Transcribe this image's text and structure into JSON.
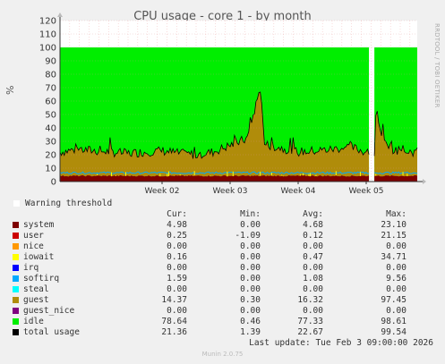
{
  "title": "CPU usage - core 1 - by month",
  "side_text": "RRDTOOL / TOBI OETIKER",
  "ylabel": "%",
  "warning_label": "Warning threshold",
  "columns": [
    "Cur:",
    "Min:",
    "Avg:",
    "Max:"
  ],
  "rows": [
    {
      "name": "system",
      "color": "#7e0000",
      "cur": "4.98",
      "min": "0.00",
      "avg": "4.68",
      "max": "23.10"
    },
    {
      "name": "user",
      "color": "#cc0000",
      "cur": "0.25",
      "min": "-1.09",
      "avg": "0.12",
      "max": "21.15"
    },
    {
      "name": "nice",
      "color": "#ff9900",
      "cur": "0.00",
      "min": "0.00",
      "avg": "0.00",
      "max": "0.00"
    },
    {
      "name": "iowait",
      "color": "#ffff00",
      "cur": "0.16",
      "min": "0.00",
      "avg": "0.47",
      "max": "34.71"
    },
    {
      "name": "irq",
      "color": "#0000ff",
      "cur": "0.00",
      "min": "0.00",
      "avg": "0.00",
      "max": "0.00"
    },
    {
      "name": "softirq",
      "color": "#00aaff",
      "cur": "1.59",
      "min": "0.00",
      "avg": "1.08",
      "max": "9.56"
    },
    {
      "name": "steal",
      "color": "#00ffff",
      "cur": "0.00",
      "min": "0.00",
      "avg": "0.00",
      "max": "0.00"
    },
    {
      "name": "guest",
      "color": "#b08c0a",
      "cur": "14.37",
      "min": "0.30",
      "avg": "16.32",
      "max": "97.45"
    },
    {
      "name": "guest_nice",
      "color": "#800080",
      "cur": "0.00",
      "min": "0.00",
      "avg": "0.00",
      "max": "0.00"
    },
    {
      "name": "idle",
      "color": "#00ee00",
      "cur": "78.64",
      "min": "0.46",
      "avg": "77.33",
      "max": "98.61"
    },
    {
      "name": "total usage",
      "color": "#000000",
      "cur": "21.36",
      "min": "1.39",
      "avg": "22.67",
      "max": "99.54"
    }
  ],
  "last_update": "Last update: Tue Feb  3 09:00:00 2026",
  "footer": "Munin 2.0.75",
  "chart_data": {
    "type": "area",
    "title": "CPU usage - core 1 - by month",
    "ylabel": "%",
    "ylim": [
      0,
      120
    ],
    "yticks": [
      0,
      10,
      20,
      30,
      40,
      50,
      60,
      70,
      80,
      90,
      100,
      110,
      120
    ],
    "x_tick_labels": [
      "Week 02",
      "Week 03",
      "Week 04",
      "Week 05"
    ],
    "x_tick_positions": [
      1.5,
      2.5,
      3.5,
      4.5
    ],
    "x_range_weeks": [
      0.0,
      5.25
    ],
    "gap_weeks": [
      4.54,
      4.62
    ],
    "grid": true,
    "stacked_series": [
      "system",
      "user",
      "iowait",
      "softirq",
      "guest",
      "idle"
    ],
    "series": [
      {
        "name": "total usage",
        "x_weeks": [
          0.0,
          0.25,
          0.5,
          0.75,
          1.0,
          1.25,
          1.5,
          1.75,
          2.0,
          2.25,
          2.5,
          2.75,
          2.95,
          3.0,
          3.25,
          3.5,
          3.75,
          4.0,
          4.25,
          4.5,
          4.62,
          4.65,
          4.75,
          4.9,
          5.0,
          5.25
        ],
        "values": [
          22,
          24,
          23,
          22,
          21,
          22,
          23,
          21,
          20,
          22,
          27,
          32,
          71,
          28,
          25,
          22,
          23,
          24,
          26,
          22,
          22,
          55,
          30,
          24,
          23,
          22
        ]
      }
    ]
  }
}
